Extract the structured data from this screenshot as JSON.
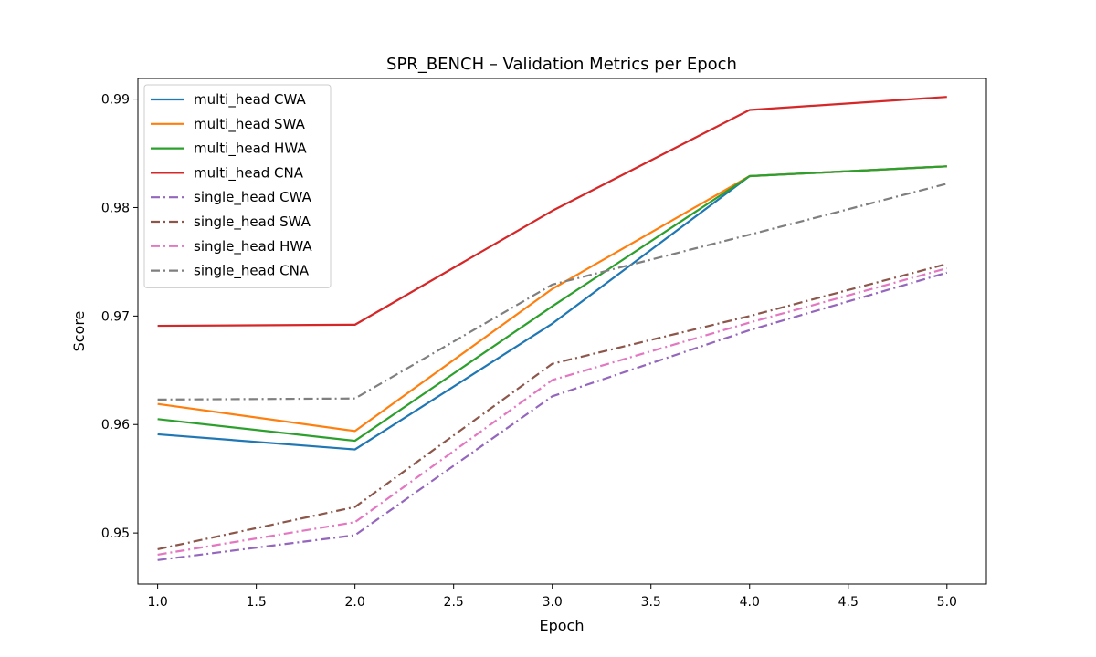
{
  "chart_data": {
    "type": "line",
    "title": "SPR_BENCH – Validation Metrics per Epoch",
    "xlabel": "Epoch",
    "ylabel": "Score",
    "xlim": [
      0.9,
      5.2
    ],
    "ylim": [
      0.9453,
      0.9919
    ],
    "x_ticks": [
      "1.0",
      "1.5",
      "2.0",
      "2.5",
      "3.0",
      "3.5",
      "4.0",
      "4.5",
      "5.0"
    ],
    "y_ticks": [
      "0.95",
      "0.96",
      "0.97",
      "0.98",
      "0.99"
    ],
    "grid": false,
    "legend_position": "top-left",
    "x": [
      1,
      2,
      3,
      4,
      5
    ],
    "series": [
      {
        "name": "multi_head CWA",
        "color": "#1f77b4",
        "dash": "solid",
        "values": [
          0.9591,
          0.9577,
          0.9693,
          0.9829,
          0.9838
        ]
      },
      {
        "name": "multi_head SWA",
        "color": "#ff7f0e",
        "dash": "solid",
        "values": [
          0.9619,
          0.9594,
          0.9725,
          0.9829,
          0.9838
        ]
      },
      {
        "name": "multi_head HWA",
        "color": "#2ca02c",
        "dash": "solid",
        "values": [
          0.9605,
          0.9585,
          0.9709,
          0.9829,
          0.9838
        ]
      },
      {
        "name": "multi_head CNA",
        "color": "#d62728",
        "dash": "solid",
        "values": [
          0.9691,
          0.9692,
          0.9797,
          0.989,
          0.9902
        ]
      },
      {
        "name": "single_head CWA",
        "color": "#9467bd",
        "dash": "dashdot",
        "values": [
          0.9475,
          0.9498,
          0.9626,
          0.9687,
          0.974
        ]
      },
      {
        "name": "single_head SWA",
        "color": "#8c564b",
        "dash": "dashdot",
        "values": [
          0.9485,
          0.9524,
          0.9656,
          0.97,
          0.9748
        ]
      },
      {
        "name": "single_head HWA",
        "color": "#e377c2",
        "dash": "dashdot",
        "values": [
          0.948,
          0.951,
          0.9641,
          0.9694,
          0.9744
        ]
      },
      {
        "name": "single_head CNA",
        "color": "#7f7f7f",
        "dash": "dashdot",
        "values": [
          0.9623,
          0.9624,
          0.9729,
          0.9775,
          0.9822
        ]
      }
    ]
  }
}
